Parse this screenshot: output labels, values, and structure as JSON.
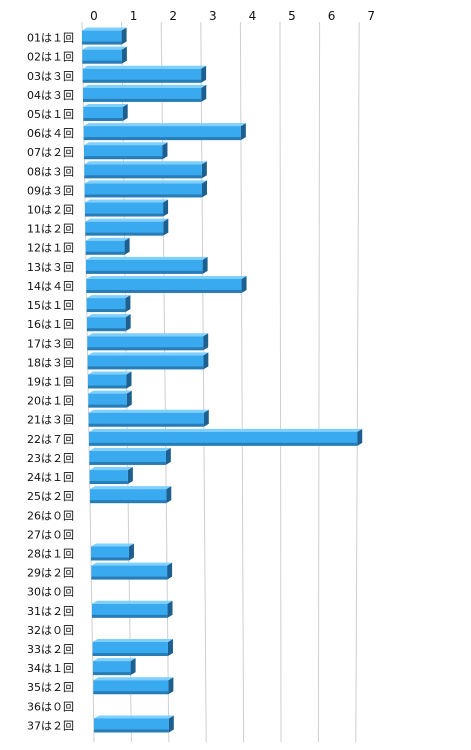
{
  "chart_data": {
    "type": "bar",
    "orientation": "horizontal",
    "style": "3d",
    "title": "",
    "xlabel": "",
    "ylabel": "",
    "xlim": [
      0,
      7
    ],
    "x_ticks": [
      "0",
      "1",
      "2",
      "3",
      "4",
      "5",
      "6",
      "7"
    ],
    "grid": true,
    "bar_color": "#3aaaf0",
    "bar_color_dark": "#1d5f8f",
    "categories": [
      "01は１回",
      "02は１回",
      "03は３回",
      "04は３回",
      "05は１回",
      "06は４回",
      "07は２回",
      "08は３回",
      "09は３回",
      "10は２回",
      "11は２回",
      "12は１回",
      "13は３回",
      "14は４回",
      "15は１回",
      "16は１回",
      "17は３回",
      "18は３回",
      "19は１回",
      "20は１回",
      "21は３回",
      "22は７回",
      "23は２回",
      "24は１回",
      "25は２回",
      "26は０回",
      "27は０回",
      "28は１回",
      "29は２回",
      "30は０回",
      "31は２回",
      "32は０回",
      "33は２回",
      "34は１回",
      "35は２回",
      "36は０回",
      "37は２回"
    ],
    "values": [
      1,
      1,
      3,
      3,
      1,
      4,
      2,
      3,
      3,
      2,
      2,
      1,
      3,
      4,
      1,
      1,
      3,
      3,
      1,
      1,
      3,
      7,
      2,
      1,
      2,
      0,
      0,
      1,
      2,
      0,
      2,
      0,
      2,
      1,
      2,
      0,
      2
    ]
  }
}
